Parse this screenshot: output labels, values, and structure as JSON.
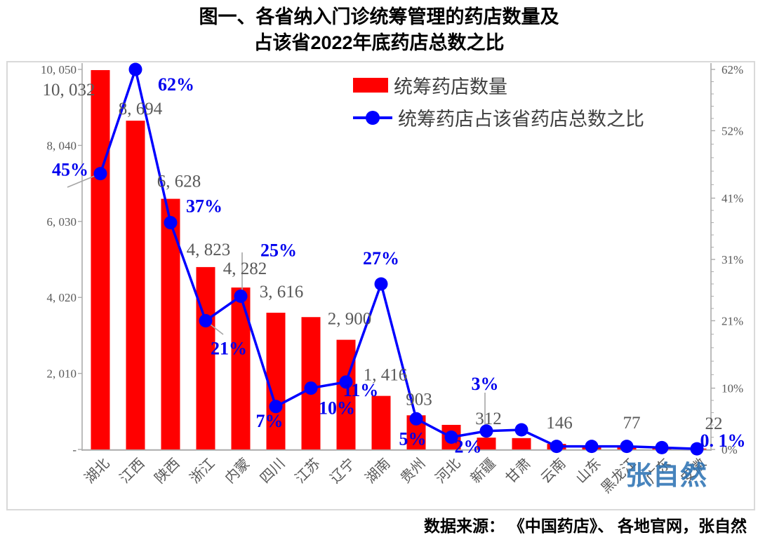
{
  "title": {
    "line1": "图一、各省纳入门诊统筹管理的药店数量及",
    "line2": "占该省2022年底药店总数之比"
  },
  "legend": {
    "bar_label": "统筹药店数量",
    "line_label": "统筹药店占该省药店总数之比"
  },
  "footer": {
    "text": "数据来源： 《中国药店》、 各地官网，张自然"
  },
  "watermark": {
    "text": "张自然"
  },
  "colors": {
    "bar": "#FF0000",
    "line": "#0000FF",
    "pct_label": "#0000EE",
    "gray_label": "#595959",
    "axis": "#ABABAB",
    "frame_border": "#D9D9D9",
    "watermark": "#2E74B5"
  },
  "chart_data": {
    "type": "bar",
    "combo": "bar+line (line on secondary percent axis)",
    "title": "图一、各省纳入门诊统筹管理的药店数量及占该省2022年底药店总数之比",
    "categories": [
      "湖北",
      "江西",
      "陕西",
      "浙江",
      "内蒙",
      "四川",
      "江苏",
      "辽宁",
      "湖南",
      "贵州",
      "河北",
      "新疆",
      "甘肃",
      "云南",
      "山东",
      "黑龙江",
      "广东",
      "安徽"
    ],
    "series": [
      {
        "name": "统筹药店数量",
        "type": "bar",
        "axis": "left",
        "values": [
          10032,
          8694,
          6628,
          4823,
          4282,
          3616,
          3500,
          2900,
          1416,
          903,
          650,
          312,
          300,
          146,
          100,
          77,
          40,
          22
        ],
        "data_labels": [
          "10, 032",
          "8, 694",
          "6, 628",
          "4, 823",
          "4, 282",
          "3, 616",
          null,
          "2, 900",
          "1, 416",
          "903",
          null,
          "312",
          null,
          "146",
          null,
          "77",
          null,
          "22"
        ]
      },
      {
        "name": "统筹药店占该省药店总数之比",
        "type": "line",
        "axis": "right",
        "values_percent": [
          45,
          62,
          37,
          21,
          25,
          7,
          10,
          11,
          27,
          5,
          2,
          3,
          3.2,
          0.5,
          0.5,
          0.5,
          0.3,
          0.1
        ],
        "data_labels": [
          "45%",
          "62%",
          "37%",
          "21%",
          "25%",
          "7%",
          "10%",
          "11%",
          "27%",
          "5%",
          "2%",
          "3%",
          null,
          null,
          null,
          null,
          null,
          "0. 1%"
        ]
      }
    ],
    "left_axis": {
      "labels": [
        "10, 050",
        "8, 040",
        "6, 030",
        "4, 020",
        "2, 010",
        "-"
      ],
      "values": [
        10050,
        8040,
        6030,
        4020,
        2010,
        0
      ],
      "range": [
        0,
        10050
      ]
    },
    "right_axis": {
      "labels": [
        "62%",
        "52%",
        "41%",
        "31%",
        "21%",
        "10%",
        "0%"
      ],
      "values": [
        62,
        52,
        41,
        31,
        21,
        10,
        0
      ],
      "range": [
        0,
        62
      ]
    },
    "grid": "off",
    "legend_position": "inside-top-center",
    "source_note": "数据来源： 《中国药店》、 各地官网，张自然"
  }
}
